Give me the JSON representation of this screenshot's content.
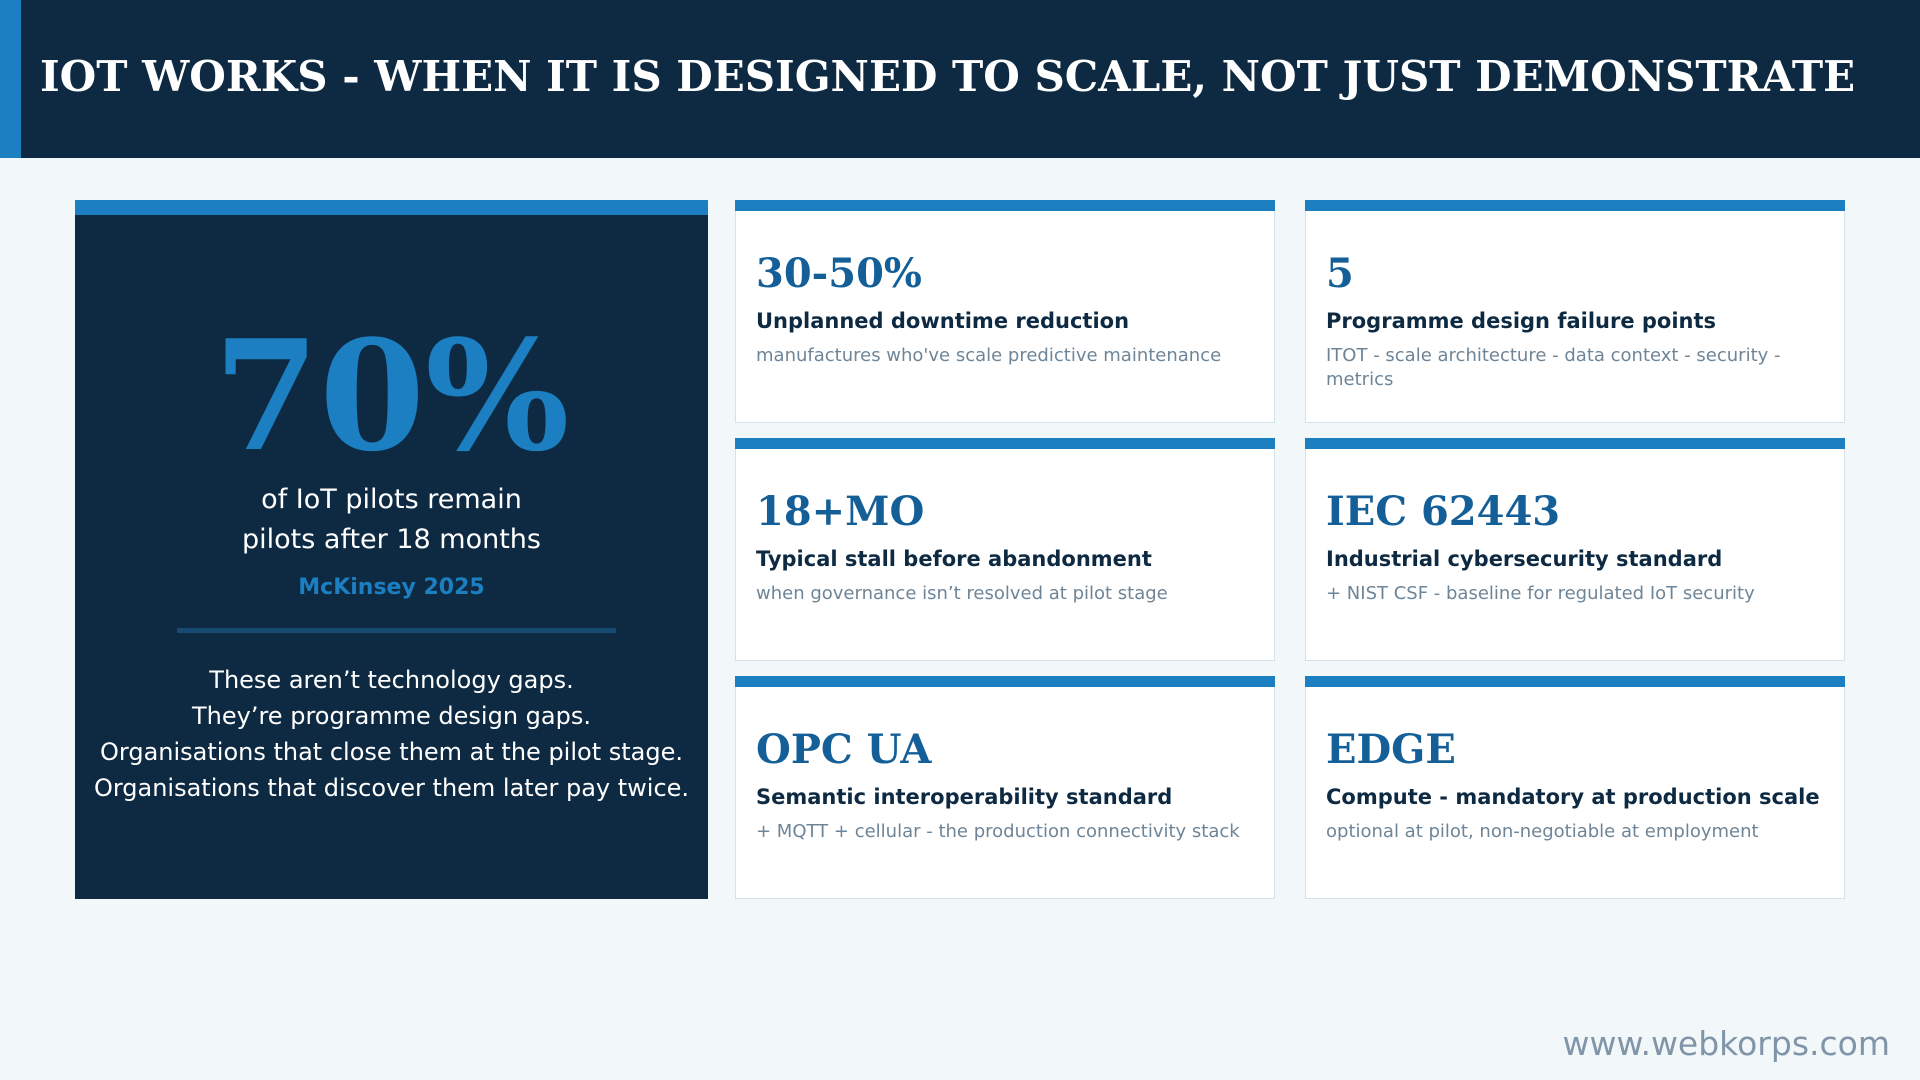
{
  "header": {
    "title": "IOT WORKS - WHEN IT IS DESIGNED TO SCALE, NOT JUST DEMONSTRATE"
  },
  "hero": {
    "stat": "70%",
    "caption_line1": "of IoT pilots remain",
    "caption_line2": "pilots after 18 months",
    "source": "McKinsey 2025",
    "body_lines": [
      "These aren’t technology gaps.",
      "They’re programme design gaps.",
      "Organisations that close them at the pilot stage.",
      "Organisations that discover them later pay twice."
    ]
  },
  "cards": [
    {
      "stat": "30-50%",
      "heading": "Unplanned downtime reduction",
      "sub": "manufactures who've scale predictive maintenance"
    },
    {
      "stat": "5",
      "heading": "Programme design failure points",
      "sub": "ITOT - scale architecture - data context - security - metrics"
    },
    {
      "stat": "18+MO",
      "heading": "Typical stall before abandonment",
      "sub": "when governance isn’t resolved at pilot stage"
    },
    {
      "stat": "IEC 62443",
      "heading": "Industrial cybersecurity standard",
      "sub": "+ NIST CSF - baseline for regulated IoT security"
    },
    {
      "stat": "OPC UA",
      "heading": "Semantic interoperability standard",
      "sub": "+ MQTT + cellular - the production connectivity stack"
    },
    {
      "stat": "EDGE",
      "heading": "Compute - mandatory at production scale",
      "sub": "optional at pilot, non-negotiable at employment"
    }
  ],
  "footer": {
    "url": "www.webkorps.com"
  },
  "colors": {
    "navy": "#0e2a42",
    "accent_blue": "#1b7fc1",
    "stat_blue": "#145f98",
    "background": "#f2f7fa",
    "muted_text": "#6e8598"
  }
}
